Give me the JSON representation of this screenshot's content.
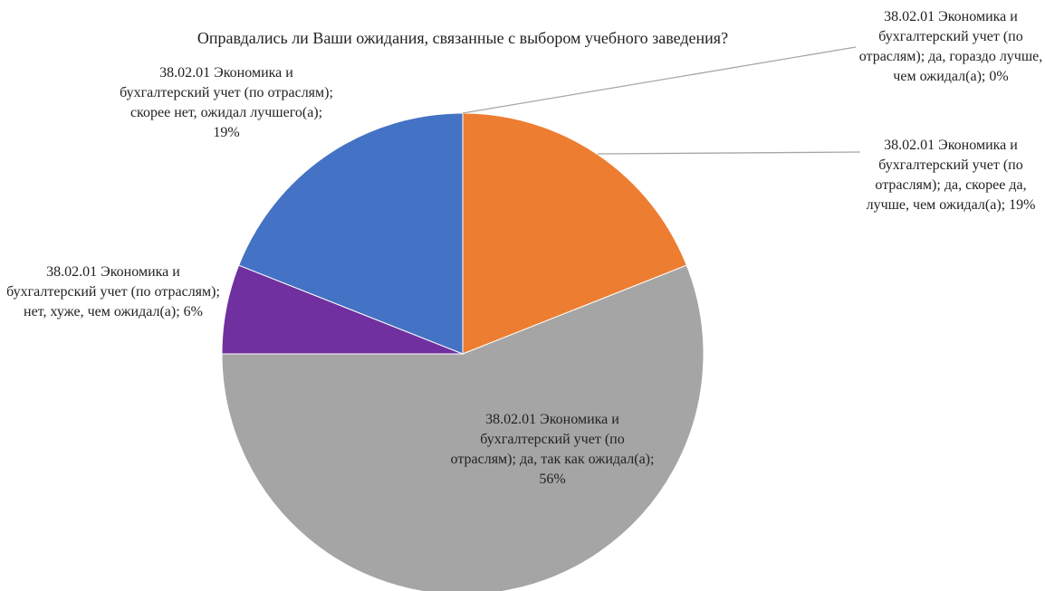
{
  "chart_data": {
    "type": "pie",
    "title": "Оправдались ли Ваши ожидания, связанные с выбором учебного заведения?",
    "values": [
      0,
      19,
      56,
      6,
      19
    ],
    "value_labels": [
      "38.02.01 Экономика и бухгалтерский учет (по отраслям); да, гораздо лучше, чем ожидал(а); 0%",
      "38.02.01 Экономика и бухгалтерский учет (по отраслям); да, скорее да, лучше, чем ожидал(а); 19%",
      "38.02.01 Экономика и бухгалтерский учет (по отраслям); да, так как ожидал(а); 56%",
      "38.02.01 Экономика и бухгалтерский учет (по отраслям); нет, хуже, чем ожидал(а); 6%",
      "38.02.01 Экономика и бухгалтерский учет (по отраслям); скорее нет, ожидал лучшего(а); 19%"
    ],
    "colors": [
      "#5b9bd5",
      "#ed7d31",
      "#a5a5a5",
      "#7030a0",
      "#4472c4"
    ]
  }
}
